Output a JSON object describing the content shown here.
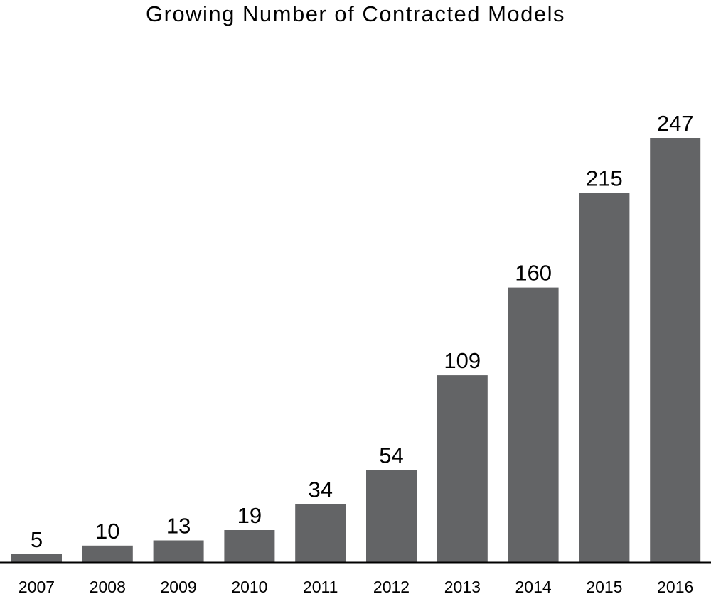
{
  "chart_data": {
    "type": "bar",
    "title": "Growing Number of Contracted Models",
    "xlabel": "",
    "ylabel": "",
    "categories": [
      "2007",
      "2008",
      "2009",
      "2010",
      "2011",
      "2012",
      "2013",
      "2014",
      "2015",
      "2016"
    ],
    "values": [
      5,
      10,
      13,
      19,
      34,
      54,
      109,
      160,
      215,
      247
    ],
    "ylim": [
      0,
      247
    ],
    "grid": false,
    "legend": "none",
    "bar_color": "#636466",
    "axis_color": "#000000"
  }
}
